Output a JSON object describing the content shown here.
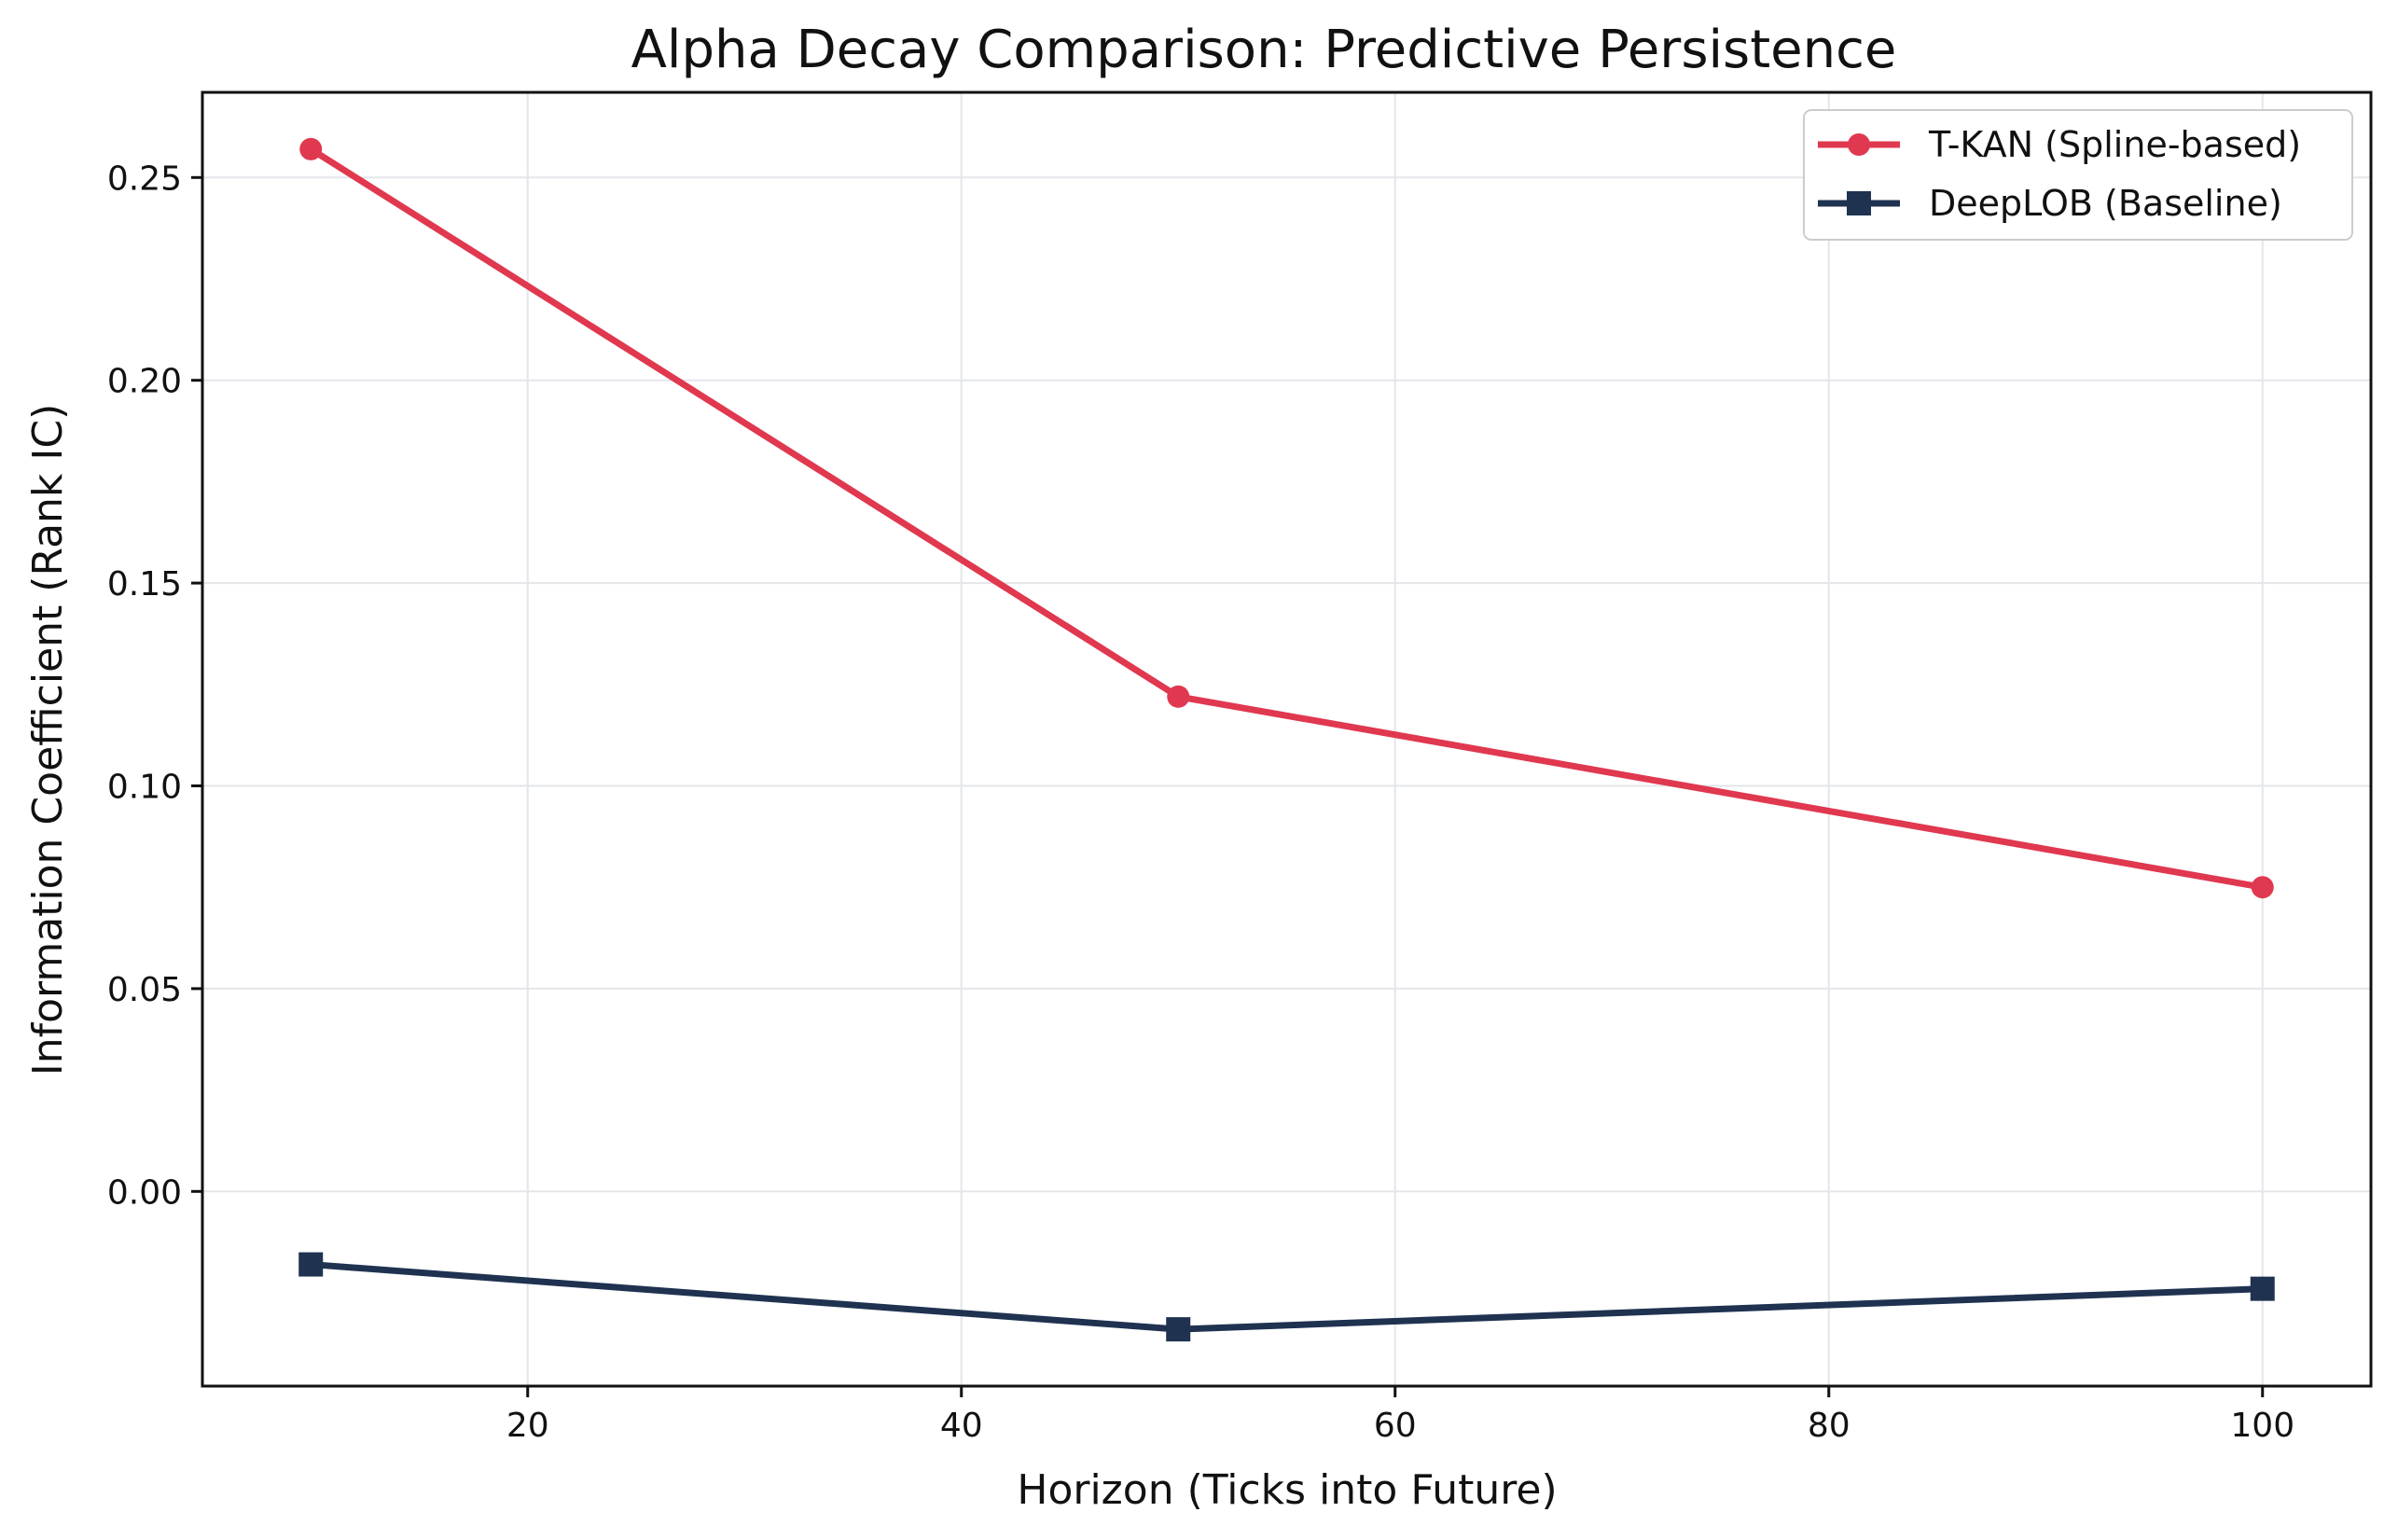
{
  "chart_data": {
    "type": "line",
    "title": "Alpha Decay Comparison: Predictive Persistence",
    "xlabel": "Horizon (Ticks into Future)",
    "ylabel": "Information Coefficient (Rank IC)",
    "xlim": [
      5,
      105
    ],
    "ylim": [
      -0.048,
      0.271
    ],
    "xticks": [
      20,
      40,
      60,
      80,
      100
    ],
    "yticks": [
      0.0,
      0.05,
      0.1,
      0.15,
      0.2,
      0.25
    ],
    "xtick_labels": [
      "20",
      "40",
      "60",
      "80",
      "100"
    ],
    "ytick_labels": [
      "0.00",
      "0.05",
      "0.10",
      "0.15",
      "0.20",
      "0.25"
    ],
    "grid": true,
    "legend_position": "top-right",
    "series": [
      {
        "name": "T-KAN (Spline-based)",
        "color": "#e0384f",
        "marker": "circle",
        "x": [
          10,
          50,
          100
        ],
        "y": [
          0.257,
          0.122,
          0.075
        ]
      },
      {
        "name": "DeepLOB (Baseline)",
        "color": "#1f3250",
        "marker": "square",
        "x": [
          10,
          50,
          100
        ],
        "y": [
          -0.018,
          -0.034,
          -0.024
        ]
      }
    ]
  }
}
